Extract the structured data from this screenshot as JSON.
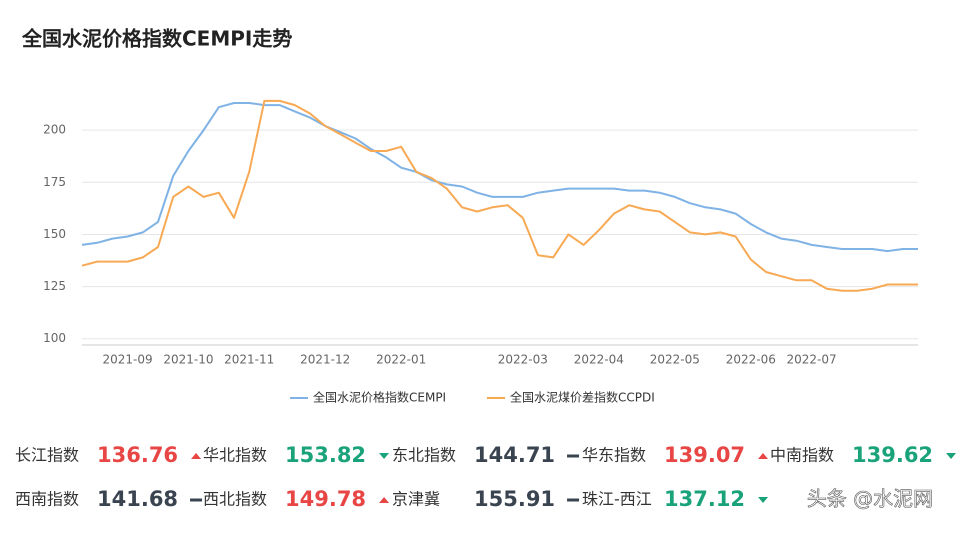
{
  "chart_data": {
    "type": "line",
    "title": "全国水泥价格指数CEMPI走势",
    "categories": [
      null,
      null,
      null,
      "2021-09",
      null,
      null,
      null,
      "2021-10",
      null,
      null,
      null,
      "2021-11",
      null,
      null,
      null,
      null,
      "2021-12",
      null,
      null,
      null,
      null,
      "2022-01",
      null,
      null,
      null,
      null,
      null,
      null,
      null,
      "2022-03",
      null,
      null,
      null,
      null,
      "2022-04",
      null,
      null,
      null,
      null,
      "2022-05",
      null,
      null,
      null,
      null,
      "2022-06",
      null,
      null,
      null,
      "2022-07",
      null,
      null,
      null,
      null,
      null,
      null,
      null
    ],
    "series": [
      {
        "name": "全国水泥价格指数CEMPI",
        "color": "#7fb2e5",
        "values": [
          145,
          146,
          148,
          149,
          151,
          156,
          178,
          190,
          200,
          211,
          213,
          213,
          212,
          212,
          209,
          206,
          202,
          199,
          196,
          191,
          187,
          182,
          180,
          176,
          174,
          173,
          170,
          168,
          168,
          168,
          170,
          171,
          172,
          172,
          172,
          172,
          171,
          171,
          170,
          168,
          165,
          163,
          162,
          160,
          155,
          151,
          148,
          147,
          145,
          144,
          143,
          143,
          143,
          142,
          143,
          143
        ]
      },
      {
        "name": "全国水泥煤价差指数CCPDI",
        "color": "#f7a954",
        "values": [
          135,
          137,
          137,
          137,
          139,
          144,
          168,
          173,
          168,
          170,
          158,
          180,
          214,
          214,
          212,
          208,
          202,
          198,
          194,
          190,
          190,
          192,
          180,
          177,
          172,
          163,
          161,
          163,
          164,
          158,
          140,
          139,
          150,
          145,
          152,
          160,
          164,
          162,
          161,
          156,
          151,
          150,
          151,
          149,
          138,
          132,
          130,
          128,
          128,
          124,
          123,
          123,
          124,
          126,
          126,
          126
        ]
      }
    ],
    "ylim": [
      97,
      225
    ],
    "yticks": [
      100,
      125,
      150,
      175,
      200
    ],
    "grid": true,
    "legend": "bottom"
  },
  "indices": [
    [
      {
        "name": "长江指数",
        "value": "136.76",
        "trend": "up"
      },
      {
        "name": "华北指数",
        "value": "153.82",
        "trend": "down"
      },
      {
        "name": "东北指数",
        "value": "144.71",
        "trend": "flat"
      },
      {
        "name": "华东指数",
        "value": "139.07",
        "trend": "up"
      },
      {
        "name": "中南指数",
        "value": "139.62",
        "trend": "down"
      }
    ],
    [
      {
        "name": "西南指数",
        "value": "141.68",
        "trend": "flat"
      },
      {
        "name": "西北指数",
        "value": "149.78",
        "trend": "up"
      },
      {
        "name": "京津冀",
        "value": "155.91",
        "trend": "flat"
      },
      {
        "name": "珠江-西江",
        "value": "137.12",
        "trend": "down"
      }
    ]
  ],
  "watermark": "头条 @水泥网"
}
